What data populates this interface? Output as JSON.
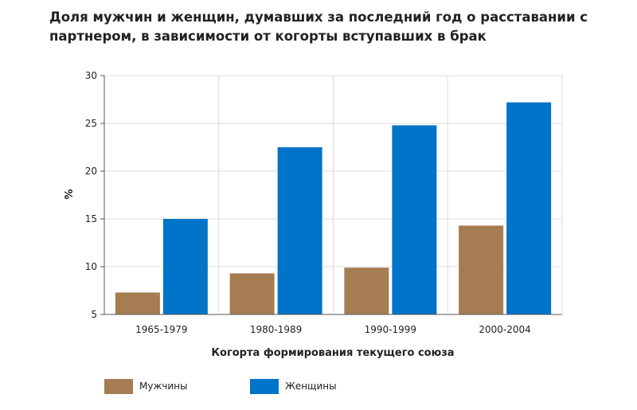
{
  "chart_data": {
    "type": "bar",
    "title": "Доля мужчин и женщин, думавших за последний год о расставании с партнером, в зависимости от когорты вступавших в брак",
    "xlabel": "Когорта формирования текущего союза",
    "ylabel": "%",
    "ylim": [
      5,
      30
    ],
    "yticks": [
      5,
      10,
      15,
      20,
      25,
      30
    ],
    "grid": true,
    "legend_position": "bottom-left",
    "categories": [
      "1965-1979",
      "1980-1989",
      "1990-1999",
      "2000-2004"
    ],
    "series": [
      {
        "name": "Мужчины",
        "color": "#a67c52",
        "values": [
          7.3,
          9.3,
          9.9,
          14.3
        ]
      },
      {
        "name": "Женщины",
        "color": "#0074c8",
        "values": [
          15.0,
          22.5,
          24.8,
          27.2
        ]
      }
    ]
  }
}
